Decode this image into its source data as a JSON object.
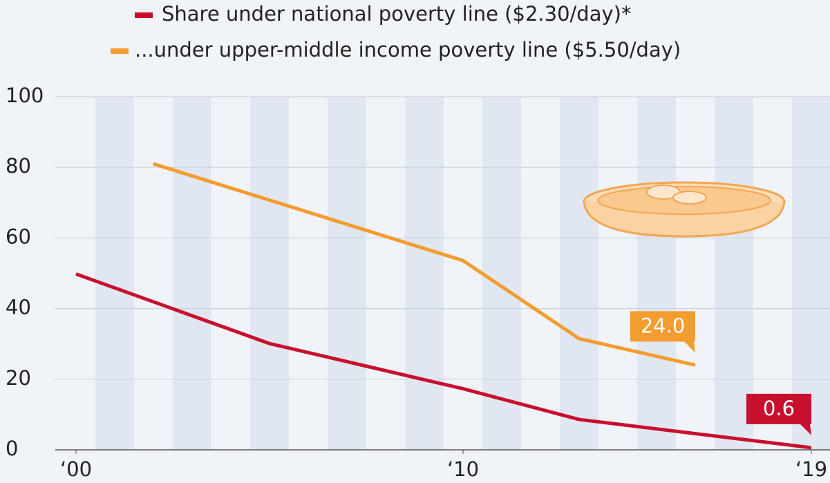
{
  "chart_data": {
    "type": "line",
    "series": [
      {
        "name": "Share under national poverty line ($2.30/day)*",
        "color": "#c8102e",
        "x": [
          2000,
          2005,
          2010,
          2013,
          2019
        ],
        "values": [
          49.8,
          30.1,
          17.3,
          8.6,
          0.6
        ],
        "value_labels": [
          null,
          null,
          null,
          null,
          "0.6"
        ]
      },
      {
        "name": "...under upper-middle income poverty line ($5.50/day)",
        "color": "#f39c2f",
        "x": [
          2002,
          2010,
          2013,
          2016
        ],
        "values": [
          81.0,
          53.6,
          31.5,
          24.0
        ],
        "value_labels": [
          null,
          null,
          null,
          "24.0"
        ]
      }
    ],
    "xlim": [
      2000,
      2019
    ],
    "xticks": [
      {
        "value": 2000,
        "label": "‘00"
      },
      {
        "value": 2010,
        "label": "‘10"
      },
      {
        "value": 2019,
        "label": "‘19"
      }
    ],
    "ylim": [
      0,
      100
    ],
    "yticks": [
      0,
      20,
      40,
      60,
      80,
      100
    ],
    "grid": true,
    "band_color": "#e1e7f1",
    "legend": "top"
  }
}
